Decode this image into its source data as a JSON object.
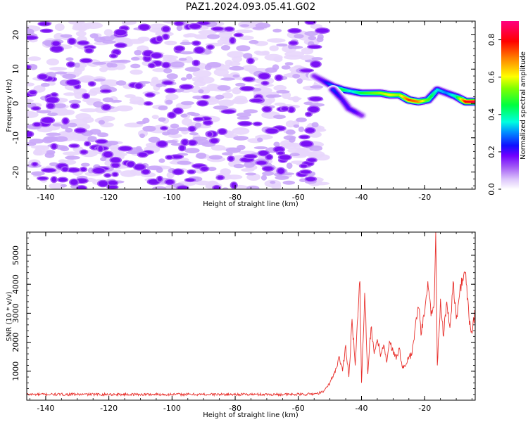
{
  "title": "PAZ1.2024.093.05.41.G02",
  "colors": {
    "snr_line": "#e8302c",
    "noise_purple": "#8a1cf0",
    "noise_light": "#e6d2fb",
    "colormap": [
      "#ffffff",
      "#d9c2fb",
      "#a45cf5",
      "#7a00ff",
      "#2020ff",
      "#00c8ff",
      "#00ff80",
      "#a0ff00",
      "#ffff00",
      "#ff8000",
      "#ff0000",
      "#ff007f"
    ]
  },
  "chart_data": [
    {
      "type": "heatmap",
      "xlabel": "Height of straight line (km)",
      "ylabel": "Frequency (Hz)",
      "xlim": [
        -146,
        -4
      ],
      "ylim": [
        -25,
        24
      ],
      "xticks": [
        -140,
        -120,
        -100,
        -80,
        -60,
        -40,
        -20
      ],
      "yticks": [
        -20,
        -10,
        0,
        10,
        20
      ],
      "noise_region_x": [
        -146,
        -52
      ],
      "noise_region_y": [
        -25,
        24
      ],
      "signal_track": {
        "x": [
          -55,
          -52,
          -49,
          -46,
          -43,
          -40,
          -37,
          -34,
          -31,
          -28,
          -25,
          -22,
          -19,
          -16,
          -13,
          -10,
          -7,
          -4
        ],
        "freq": [
          8,
          6.5,
          5,
          4,
          3.5,
          3,
          3,
          3,
          2.5,
          2.5,
          1,
          0.5,
          1,
          4,
          3,
          2,
          0.5,
          0.5
        ],
        "amplitude": [
          0.15,
          0.2,
          0.3,
          0.45,
          0.35,
          0.45,
          0.5,
          0.55,
          0.6,
          0.55,
          0.75,
          0.7,
          0.5,
          0.35,
          0.3,
          0.4,
          0.8,
          0.85
        ]
      },
      "signal_branch": {
        "x": [
          -49,
          -46,
          -44,
          -42,
          -40
        ],
        "freq": [
          4,
          1,
          -1.5,
          -2.5,
          -3.5
        ],
        "amplitude": [
          0.25,
          0.2,
          0.2,
          0.2,
          0.15
        ]
      },
      "colorbar": {
        "label": "Normalized spectral amplitude",
        "range": [
          0,
          0.9
        ],
        "ticks": [
          "0.0",
          "0.2",
          "0.4",
          "0.6",
          "0.8"
        ]
      }
    },
    {
      "type": "line",
      "xlabel": "Height of straight line (km)",
      "ylabel": "SNR (10 * v/v)",
      "xlim": [
        -146,
        -4
      ],
      "ylim": [
        0,
        5800
      ],
      "xticks": [
        -140,
        -120,
        -100,
        -80,
        -60,
        -40,
        -20
      ],
      "yticks": [
        1000,
        2000,
        3000,
        4000,
        5000
      ],
      "series": [
        {
          "x": [
            -146,
            -130,
            -110,
            -90,
            -70,
            -58,
            -54,
            -52,
            -50,
            -48,
            -47,
            -46,
            -45,
            -44,
            -43,
            -42,
            -41,
            -40.5,
            -40,
            -39,
            -38,
            -37,
            -36,
            -35,
            -34,
            -33,
            -32,
            -31,
            -30,
            -29,
            -28,
            -27,
            -26,
            -25,
            -24,
            -23,
            -22,
            -21,
            -20,
            -19,
            -18,
            -17,
            -16.5,
            -16,
            -15,
            -14,
            -13,
            -12,
            -11,
            -10,
            -9,
            -8,
            -7,
            -6,
            -5,
            -4
          ],
          "y": [
            200,
            200,
            200,
            200,
            200,
            200,
            230,
            300,
            600,
            1100,
            1500,
            1000,
            1900,
            800,
            2800,
            1200,
            3200,
            4100,
            600,
            3700,
            900,
            2500,
            1600,
            2100,
            1500,
            1900,
            1300,
            2000,
            1700,
            1400,
            1800,
            1100,
            1200,
            1500,
            1600,
            2500,
            3200,
            2300,
            3000,
            4100,
            2900,
            3300,
            5800,
            1200,
            3500,
            2200,
            3400,
            2500,
            4100,
            2800,
            3600,
            4200,
            4400,
            2900,
            2300,
            3000
          ]
        }
      ]
    }
  ]
}
